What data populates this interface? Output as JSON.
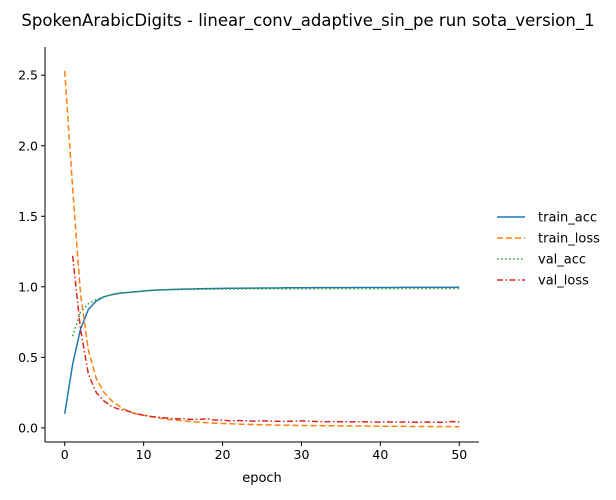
{
  "chart_data": {
    "type": "line",
    "title": "SpokenArabicDigits - linear_conv_adaptive_sin_pe run sota_version_1",
    "xlabel": "epoch",
    "ylabel": "",
    "xlim": [
      -2.5,
      52.5
    ],
    "ylim": [
      -0.1,
      2.7
    ],
    "xticks": [
      0,
      10,
      20,
      30,
      40,
      50
    ],
    "yticks": [
      0.0,
      0.5,
      1.0,
      1.5,
      2.0,
      2.5
    ],
    "xtick_labels": [
      "0",
      "10",
      "20",
      "30",
      "40",
      "50"
    ],
    "ytick_labels": [
      "0.0",
      "0.5",
      "1.0",
      "1.5",
      "2.0",
      "2.5"
    ],
    "grid": false,
    "legend_position": "right",
    "series": [
      {
        "name": "train_acc",
        "color": "#1f77b4",
        "dash": "solid",
        "x": [
          0,
          1,
          2,
          3,
          4,
          5,
          6,
          7,
          8,
          9,
          10,
          11,
          12,
          13,
          14,
          15,
          16,
          17,
          18,
          19,
          20,
          21,
          22,
          23,
          24,
          25,
          26,
          27,
          28,
          29,
          30,
          31,
          32,
          33,
          34,
          35,
          36,
          37,
          38,
          39,
          40,
          41,
          42,
          43,
          44,
          45,
          46,
          47,
          48,
          49,
          50
        ],
        "y": [
          0.1,
          0.45,
          0.7,
          0.84,
          0.9,
          0.93,
          0.945,
          0.955,
          0.96,
          0.965,
          0.97,
          0.975,
          0.978,
          0.98,
          0.982,
          0.984,
          0.985,
          0.986,
          0.987,
          0.988,
          0.989,
          0.99,
          0.99,
          0.991,
          0.991,
          0.992,
          0.992,
          0.992,
          0.993,
          0.993,
          0.993,
          0.993,
          0.994,
          0.994,
          0.994,
          0.994,
          0.994,
          0.995,
          0.995,
          0.995,
          0.995,
          0.995,
          0.995,
          0.996,
          0.996,
          0.996,
          0.996,
          0.996,
          0.996,
          0.996,
          0.997
        ]
      },
      {
        "name": "train_loss",
        "color": "#ff7f0e",
        "dash": "dashed",
        "x": [
          0,
          1,
          2,
          3,
          4,
          5,
          6,
          7,
          8,
          9,
          10,
          11,
          12,
          13,
          14,
          15,
          16,
          17,
          18,
          19,
          20,
          21,
          22,
          23,
          24,
          25,
          26,
          27,
          28,
          29,
          30,
          31,
          32,
          33,
          34,
          35,
          36,
          37,
          38,
          39,
          40,
          41,
          42,
          43,
          44,
          45,
          46,
          47,
          48,
          49,
          50
        ],
        "y": [
          2.53,
          1.7,
          0.95,
          0.55,
          0.35,
          0.25,
          0.19,
          0.15,
          0.12,
          0.1,
          0.09,
          0.08,
          0.07,
          0.06,
          0.055,
          0.05,
          0.045,
          0.04,
          0.037,
          0.034,
          0.031,
          0.029,
          0.027,
          0.025,
          0.024,
          0.022,
          0.021,
          0.02,
          0.019,
          0.018,
          0.017,
          0.016,
          0.016,
          0.015,
          0.015,
          0.014,
          0.014,
          0.013,
          0.013,
          0.012,
          0.012,
          0.011,
          0.011,
          0.011,
          0.01,
          0.01,
          0.01,
          0.009,
          0.009,
          0.009,
          0.008
        ]
      },
      {
        "name": "val_acc",
        "color": "#2ca02c",
        "dash": "dotted",
        "x": [
          1,
          2,
          3,
          4,
          5,
          6,
          7,
          8,
          9,
          10,
          11,
          12,
          13,
          14,
          15,
          16,
          17,
          18,
          19,
          20,
          21,
          22,
          23,
          24,
          25,
          26,
          27,
          28,
          29,
          30,
          31,
          32,
          33,
          34,
          35,
          36,
          37,
          38,
          39,
          40,
          41,
          42,
          43,
          44,
          45,
          46,
          47,
          48,
          49,
          50
        ],
        "y": [
          0.65,
          0.82,
          0.88,
          0.91,
          0.93,
          0.945,
          0.955,
          0.96,
          0.965,
          0.97,
          0.975,
          0.978,
          0.978,
          0.98,
          0.98,
          0.982,
          0.982,
          0.984,
          0.983,
          0.985,
          0.984,
          0.985,
          0.985,
          0.986,
          0.985,
          0.986,
          0.986,
          0.985,
          0.986,
          0.986,
          0.986,
          0.987,
          0.986,
          0.987,
          0.987,
          0.986,
          0.987,
          0.987,
          0.986,
          0.987,
          0.987,
          0.987,
          0.987,
          0.988,
          0.987,
          0.987,
          0.988,
          0.987,
          0.987,
          0.988
        ]
      },
      {
        "name": "val_loss",
        "color": "#d62728",
        "dash": "dashdot",
        "x": [
          1,
          2,
          3,
          4,
          5,
          6,
          7,
          8,
          9,
          10,
          11,
          12,
          13,
          14,
          15,
          16,
          17,
          18,
          19,
          20,
          21,
          22,
          23,
          24,
          25,
          26,
          27,
          28,
          29,
          30,
          31,
          32,
          33,
          34,
          35,
          36,
          37,
          38,
          39,
          40,
          41,
          42,
          43,
          44,
          45,
          46,
          47,
          48,
          49,
          50
        ],
        "y": [
          1.22,
          0.7,
          0.38,
          0.25,
          0.19,
          0.15,
          0.13,
          0.12,
          0.1,
          0.09,
          0.08,
          0.075,
          0.07,
          0.065,
          0.065,
          0.06,
          0.06,
          0.065,
          0.055,
          0.055,
          0.05,
          0.052,
          0.05,
          0.048,
          0.05,
          0.048,
          0.047,
          0.046,
          0.048,
          0.05,
          0.047,
          0.045,
          0.044,
          0.045,
          0.044,
          0.043,
          0.044,
          0.043,
          0.042,
          0.041,
          0.043,
          0.04,
          0.042,
          0.041,
          0.04,
          0.042,
          0.04,
          0.039,
          0.045,
          0.043
        ]
      }
    ]
  }
}
